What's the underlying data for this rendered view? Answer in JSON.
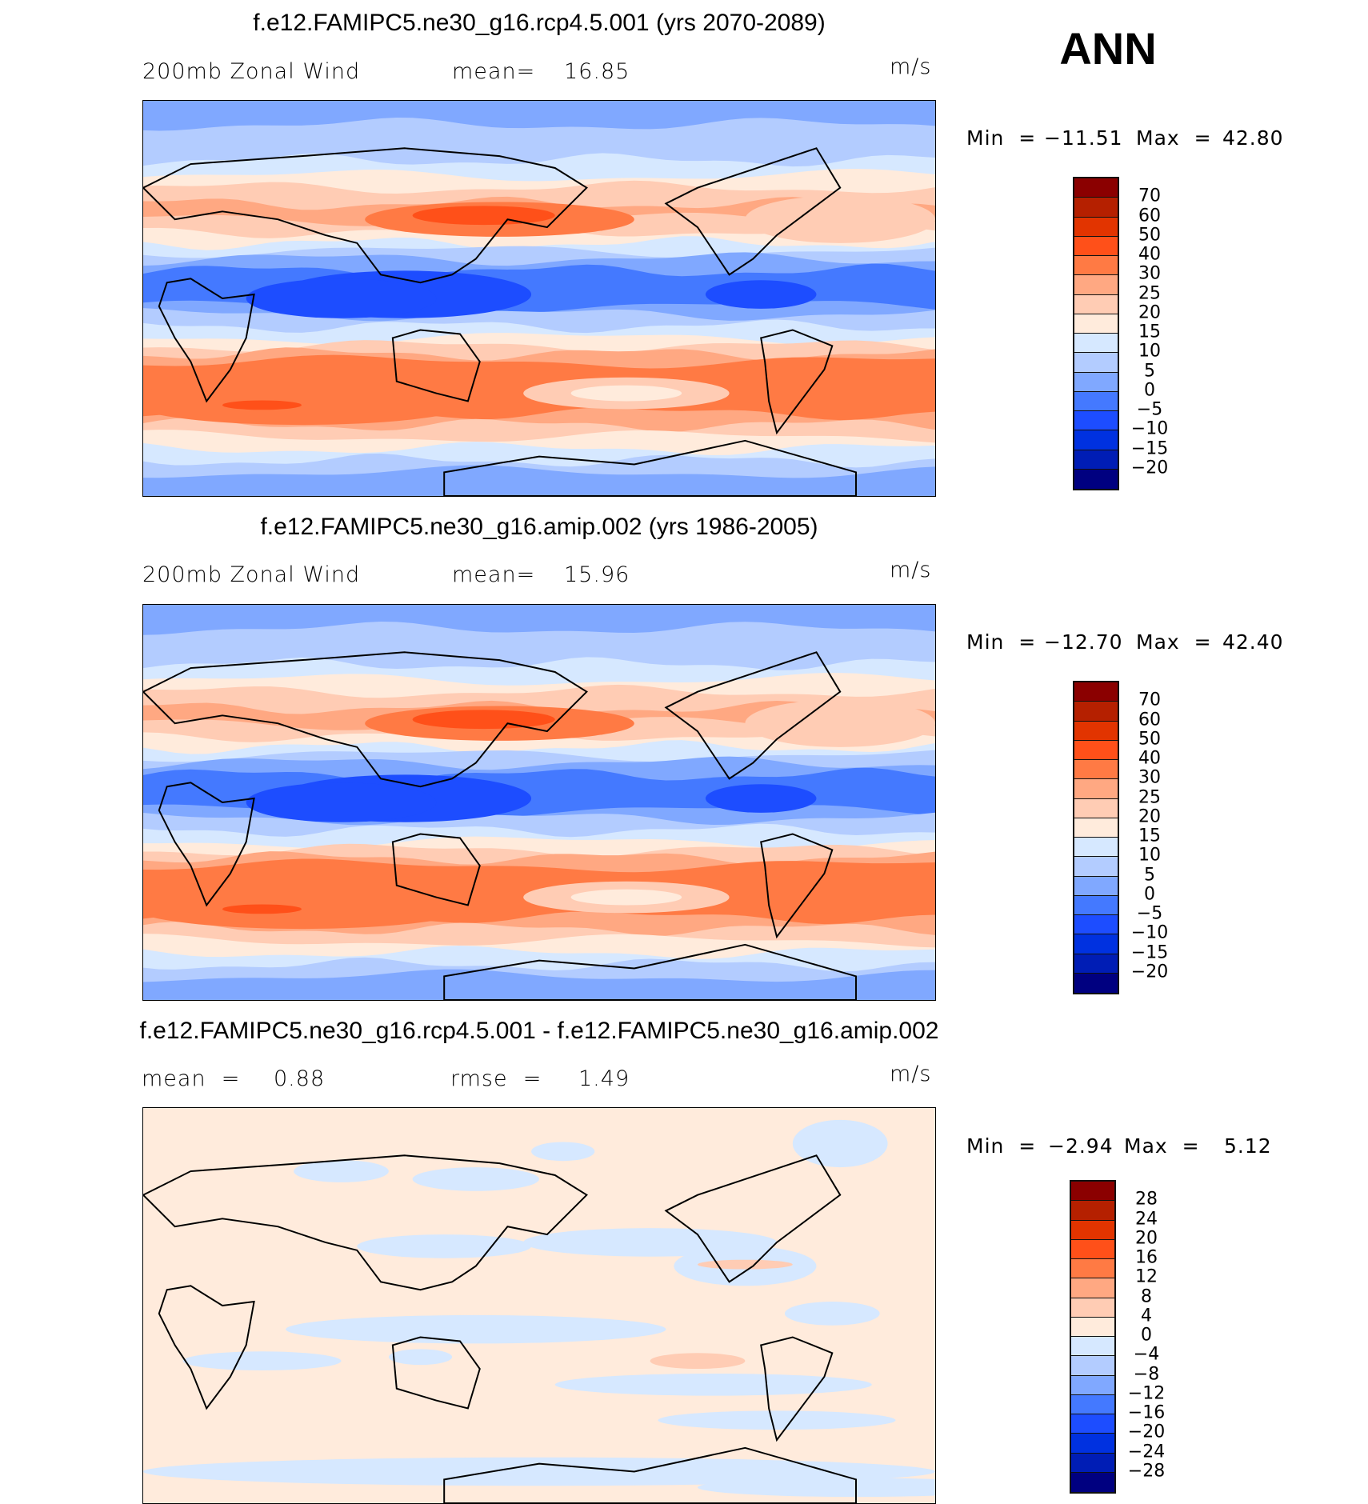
{
  "season": "ANN",
  "colors": [
    "#8b0000",
    "#b52000",
    "#e23400",
    "#ff5019",
    "#ff7a44",
    "#ffa882",
    "#ffccb4",
    "#ffebdc",
    "#d6e8ff",
    "#b3ccff",
    "#80a8ff",
    "#4479ff",
    "#1d4dff",
    "#0031e0",
    "#001db5",
    "#000080"
  ],
  "panels": [
    {
      "title": "f.e12.FAMIPC5.ne30_g16.rcp4.5.001 (yrs 2070-2089)",
      "variable": "200mb Zonal Wind",
      "stat1_label": "mean=",
      "stat1_value": "16.85",
      "units": "m/s",
      "min_label": "Min  =",
      "min_value": "−11.51",
      "max_label": "Max  =",
      "max_value": "42.80",
      "colorbar_labels": [
        "70",
        "60",
        "50",
        "40",
        "30",
        "25",
        "20",
        "15",
        "10",
        "5",
        "0",
        "−5",
        "−10",
        "−15",
        "−20"
      ]
    },
    {
      "title": "f.e12.FAMIPC5.ne30_g16.amip.002 (yrs 1986-2005)",
      "variable": "200mb Zonal Wind",
      "stat1_label": "mean=",
      "stat1_value": "15.96",
      "units": "m/s",
      "min_label": "Min  =",
      "min_value": "−12.70",
      "max_label": "Max  =",
      "max_value": "42.40",
      "colorbar_labels": [
        "70",
        "60",
        "50",
        "40",
        "30",
        "25",
        "20",
        "15",
        "10",
        "5",
        "0",
        "−5",
        "−10",
        "−15",
        "−20"
      ]
    },
    {
      "title": "f.e12.FAMIPC5.ne30_g16.rcp4.5.001 - f.e12.FAMIPC5.ne30_g16.amip.002",
      "stat1_label": "mean  =",
      "stat1_value": "0.88",
      "stat2_label": "rmse  =",
      "stat2_value": "1.49",
      "units": "m/s",
      "min_label": "Min  =",
      "min_value": "−2.94",
      "max_label": "Max  =",
      "max_value": "5.12",
      "colorbar_labels": [
        "28",
        "24",
        "20",
        "16",
        "12",
        "8",
        "4",
        "0",
        "−4",
        "−8",
        "−12",
        "−16",
        "−20",
        "−24",
        "−28"
      ]
    }
  ]
}
